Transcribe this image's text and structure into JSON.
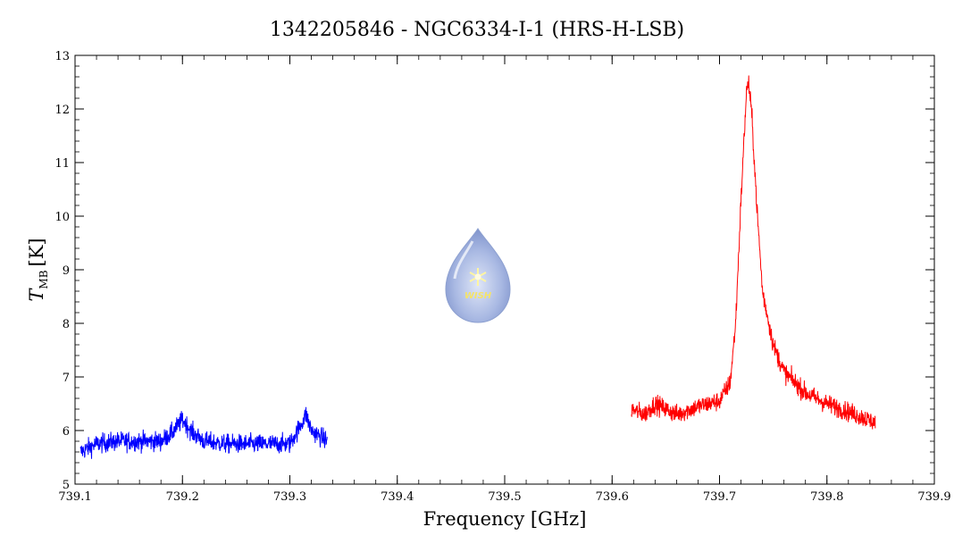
{
  "chart_data": {
    "type": "line",
    "title": "1342205846 - NGC6334-I-1 (HRS-H-LSB)",
    "xlabel": "Frequency [GHz]",
    "ylabel_main": "T",
    "ylabel_sub": "MB",
    "ylabel_unit": "[K]",
    "xlim": [
      739.1,
      739.9
    ],
    "ylim": [
      5,
      13
    ],
    "xticks": [
      739.1,
      739.2,
      739.3,
      739.4,
      739.5,
      739.6,
      739.7,
      739.8,
      739.9
    ],
    "xtick_labels": [
      "739.1",
      "739.2",
      "739.3",
      "739.4",
      "739.5",
      "739.6",
      "739.7",
      "739.8",
      "739.9"
    ],
    "yticks": [
      5,
      6,
      7,
      8,
      9,
      10,
      11,
      12,
      13
    ],
    "ytick_labels": [
      "5",
      "6",
      "7",
      "8",
      "9",
      "10",
      "11",
      "12",
      "13"
    ],
    "grid": false,
    "series": [
      {
        "color": "#0000ff",
        "x": [
          739.105,
          739.12,
          739.14,
          739.16,
          739.18,
          739.19,
          739.2,
          739.21,
          739.22,
          739.24,
          739.26,
          739.28,
          739.3,
          739.31,
          739.315,
          739.32,
          739.335
        ],
        "y": [
          5.6,
          5.75,
          5.8,
          5.8,
          5.8,
          5.95,
          6.2,
          5.95,
          5.8,
          5.75,
          5.75,
          5.75,
          5.75,
          6.1,
          6.3,
          6.0,
          5.8
        ]
      },
      {
        "color": "#ff0000",
        "x": [
          739.618,
          739.63,
          739.64,
          739.65,
          739.66,
          739.68,
          739.7,
          739.71,
          739.715,
          739.72,
          739.725,
          739.727,
          739.73,
          739.735,
          739.74,
          739.75,
          739.76,
          739.78,
          739.8,
          739.82,
          739.845
        ],
        "y": [
          6.4,
          6.3,
          6.5,
          6.4,
          6.3,
          6.45,
          6.55,
          6.9,
          8.0,
          10.3,
          12.3,
          12.5,
          11.9,
          10.1,
          8.6,
          7.6,
          7.1,
          6.7,
          6.5,
          6.35,
          6.15
        ]
      }
    ]
  },
  "logo": {
    "text": "WISH"
  }
}
